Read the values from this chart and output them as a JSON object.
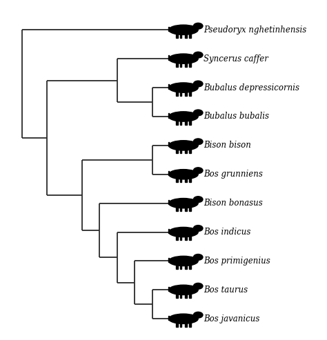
{
  "taxa": [
    "Pseudoryx nghetinhensis",
    "Syncerus caffer",
    "Bubalus depressicornis",
    "Bubalus bubalis",
    "Bison bison",
    "Bos grunniens",
    "Bison bonasus",
    "Bos indicus",
    "Bos primigenius",
    "Bos taurus",
    "Bos javanicus"
  ],
  "y_positions": [
    10,
    9,
    8,
    7,
    6,
    5,
    4,
    3,
    2,
    1,
    0
  ],
  "tip_x": 4.5,
  "line_color": "#2a2a2a",
  "line_width": 1.3,
  "background_color": "#ffffff",
  "text_fontsize": 8.5,
  "text_style": "italic",
  "n1_x": 4.0,
  "n2_x": 3.0,
  "n3_x": 4.0,
  "n4_x": 3.5,
  "n5_x": 3.0,
  "n6_x": 2.5,
  "n7_x": 4.0,
  "n8_x": 2.0,
  "n9_x": 1.0,
  "nroot_x": 0.3,
  "xlim": [
    -0.3,
    8.5
  ],
  "ylim": [
    -0.7,
    11.0
  ]
}
